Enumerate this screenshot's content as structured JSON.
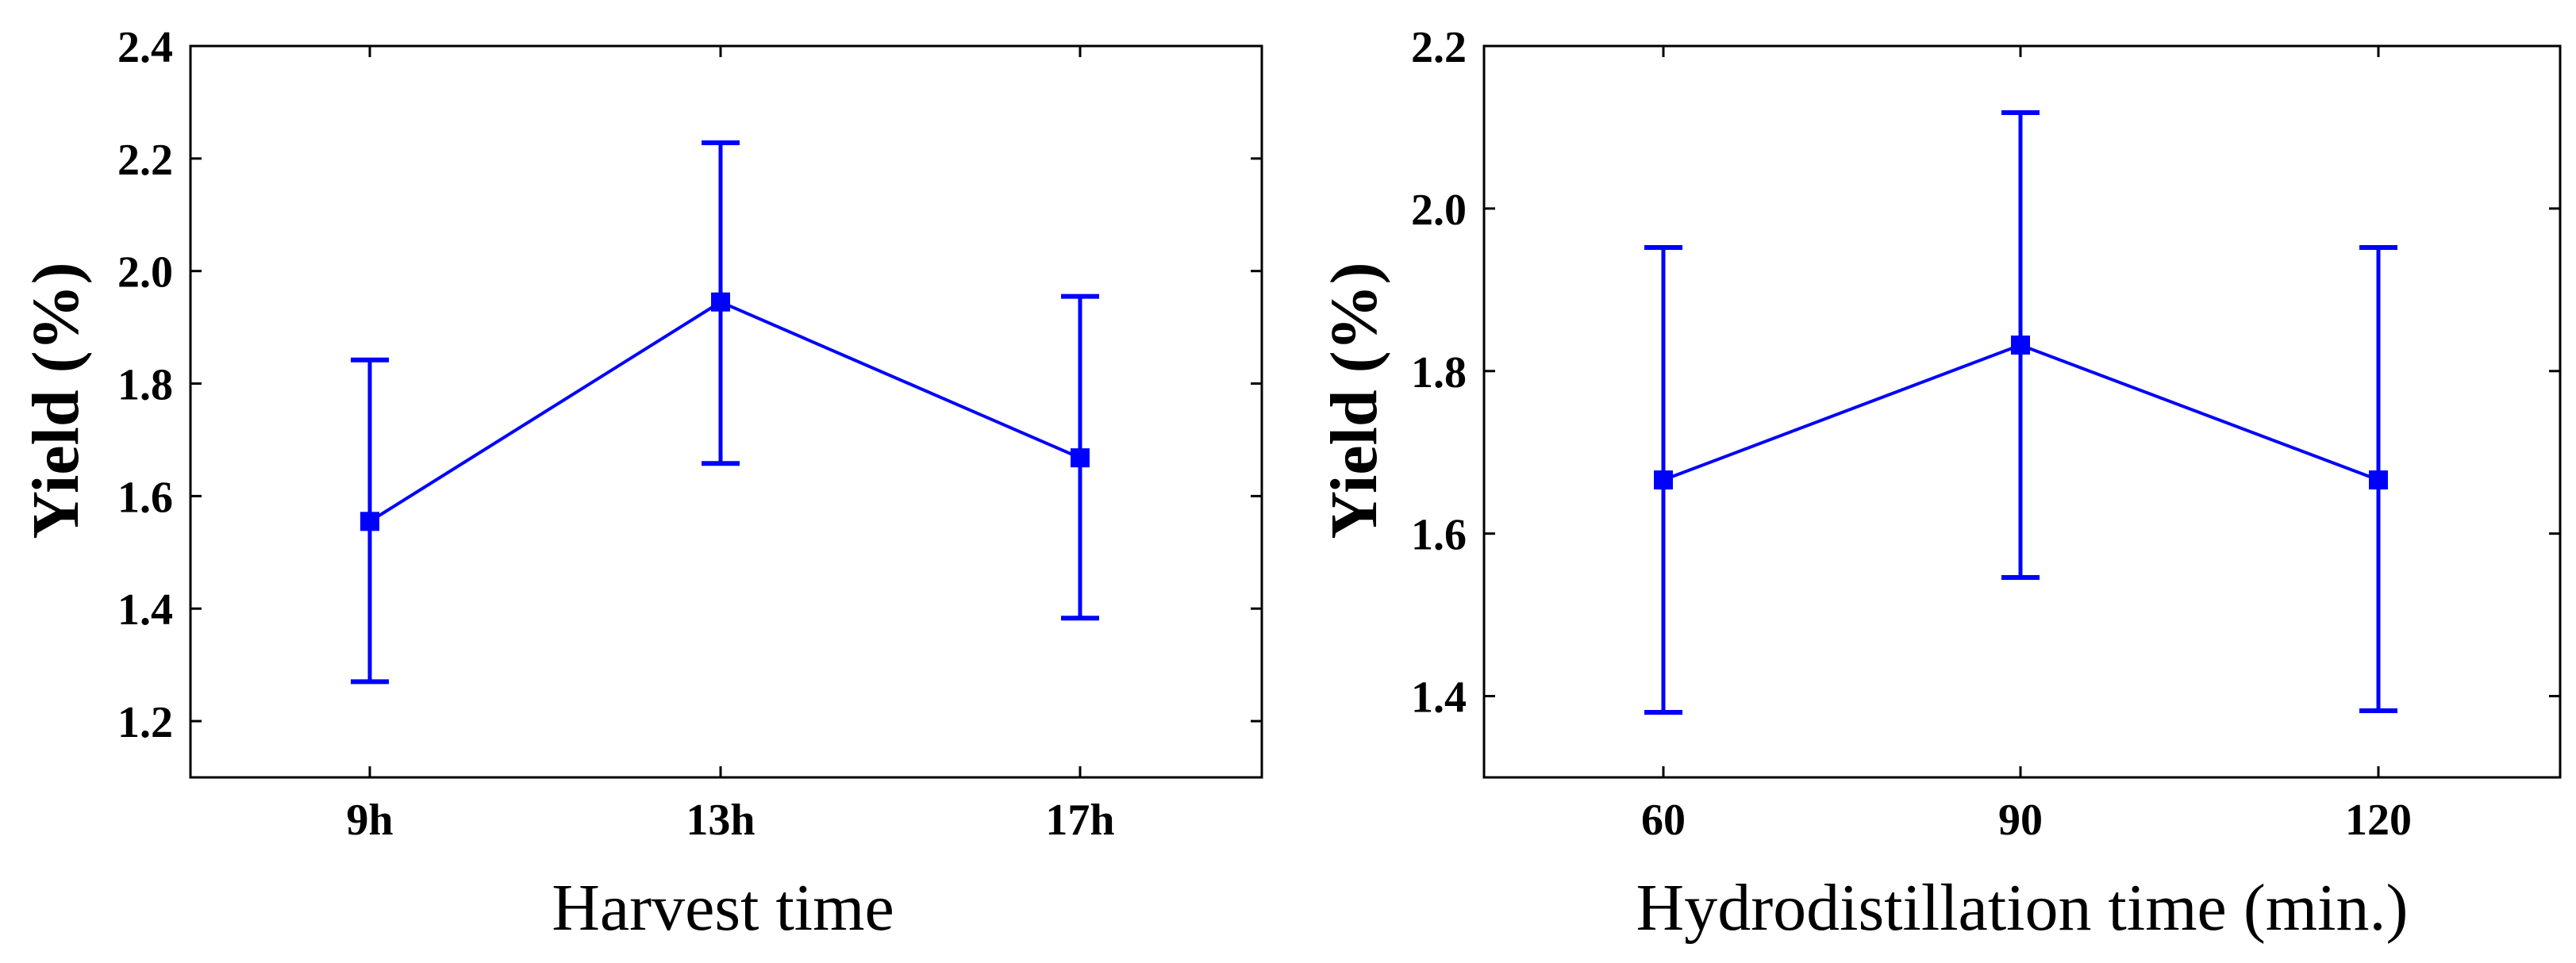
{
  "chart_data": [
    {
      "type": "line",
      "title": "",
      "xlabel": "Harvest time",
      "ylabel": "Yield (%)",
      "categories": [
        "9h",
        "13h",
        "17h"
      ],
      "ylim": [
        1.1,
        2.4
      ],
      "yticks": [
        "1.2",
        "1.4",
        "1.6",
        "1.8",
        "2.0",
        "2.2",
        "2.4"
      ],
      "series": [
        {
          "name": "Yield",
          "color": "#0000ff",
          "values": [
            1.555,
            1.945,
            1.668
          ],
          "error_low": [
            1.27,
            1.658,
            1.383
          ],
          "error_high": [
            1.842,
            2.228,
            1.955
          ]
        }
      ],
      "grid": false,
      "legend": "none"
    },
    {
      "type": "line",
      "title": "",
      "xlabel": "Hydrodistillation time (min.)",
      "ylabel": "Yield (%)",
      "categories": [
        "60",
        "90",
        "120"
      ],
      "ylim": [
        1.3,
        2.2
      ],
      "yticks": [
        "1.4",
        "1.6",
        "1.8",
        "2.0",
        "2.2"
      ],
      "series": [
        {
          "name": "Yield",
          "color": "#0000ff",
          "values": [
            1.666,
            1.832,
            1.666
          ],
          "error_low": [
            1.38,
            1.546,
            1.382
          ],
          "error_high": [
            1.952,
            2.118,
            1.952
          ]
        }
      ],
      "grid": false,
      "legend": "none"
    }
  ]
}
